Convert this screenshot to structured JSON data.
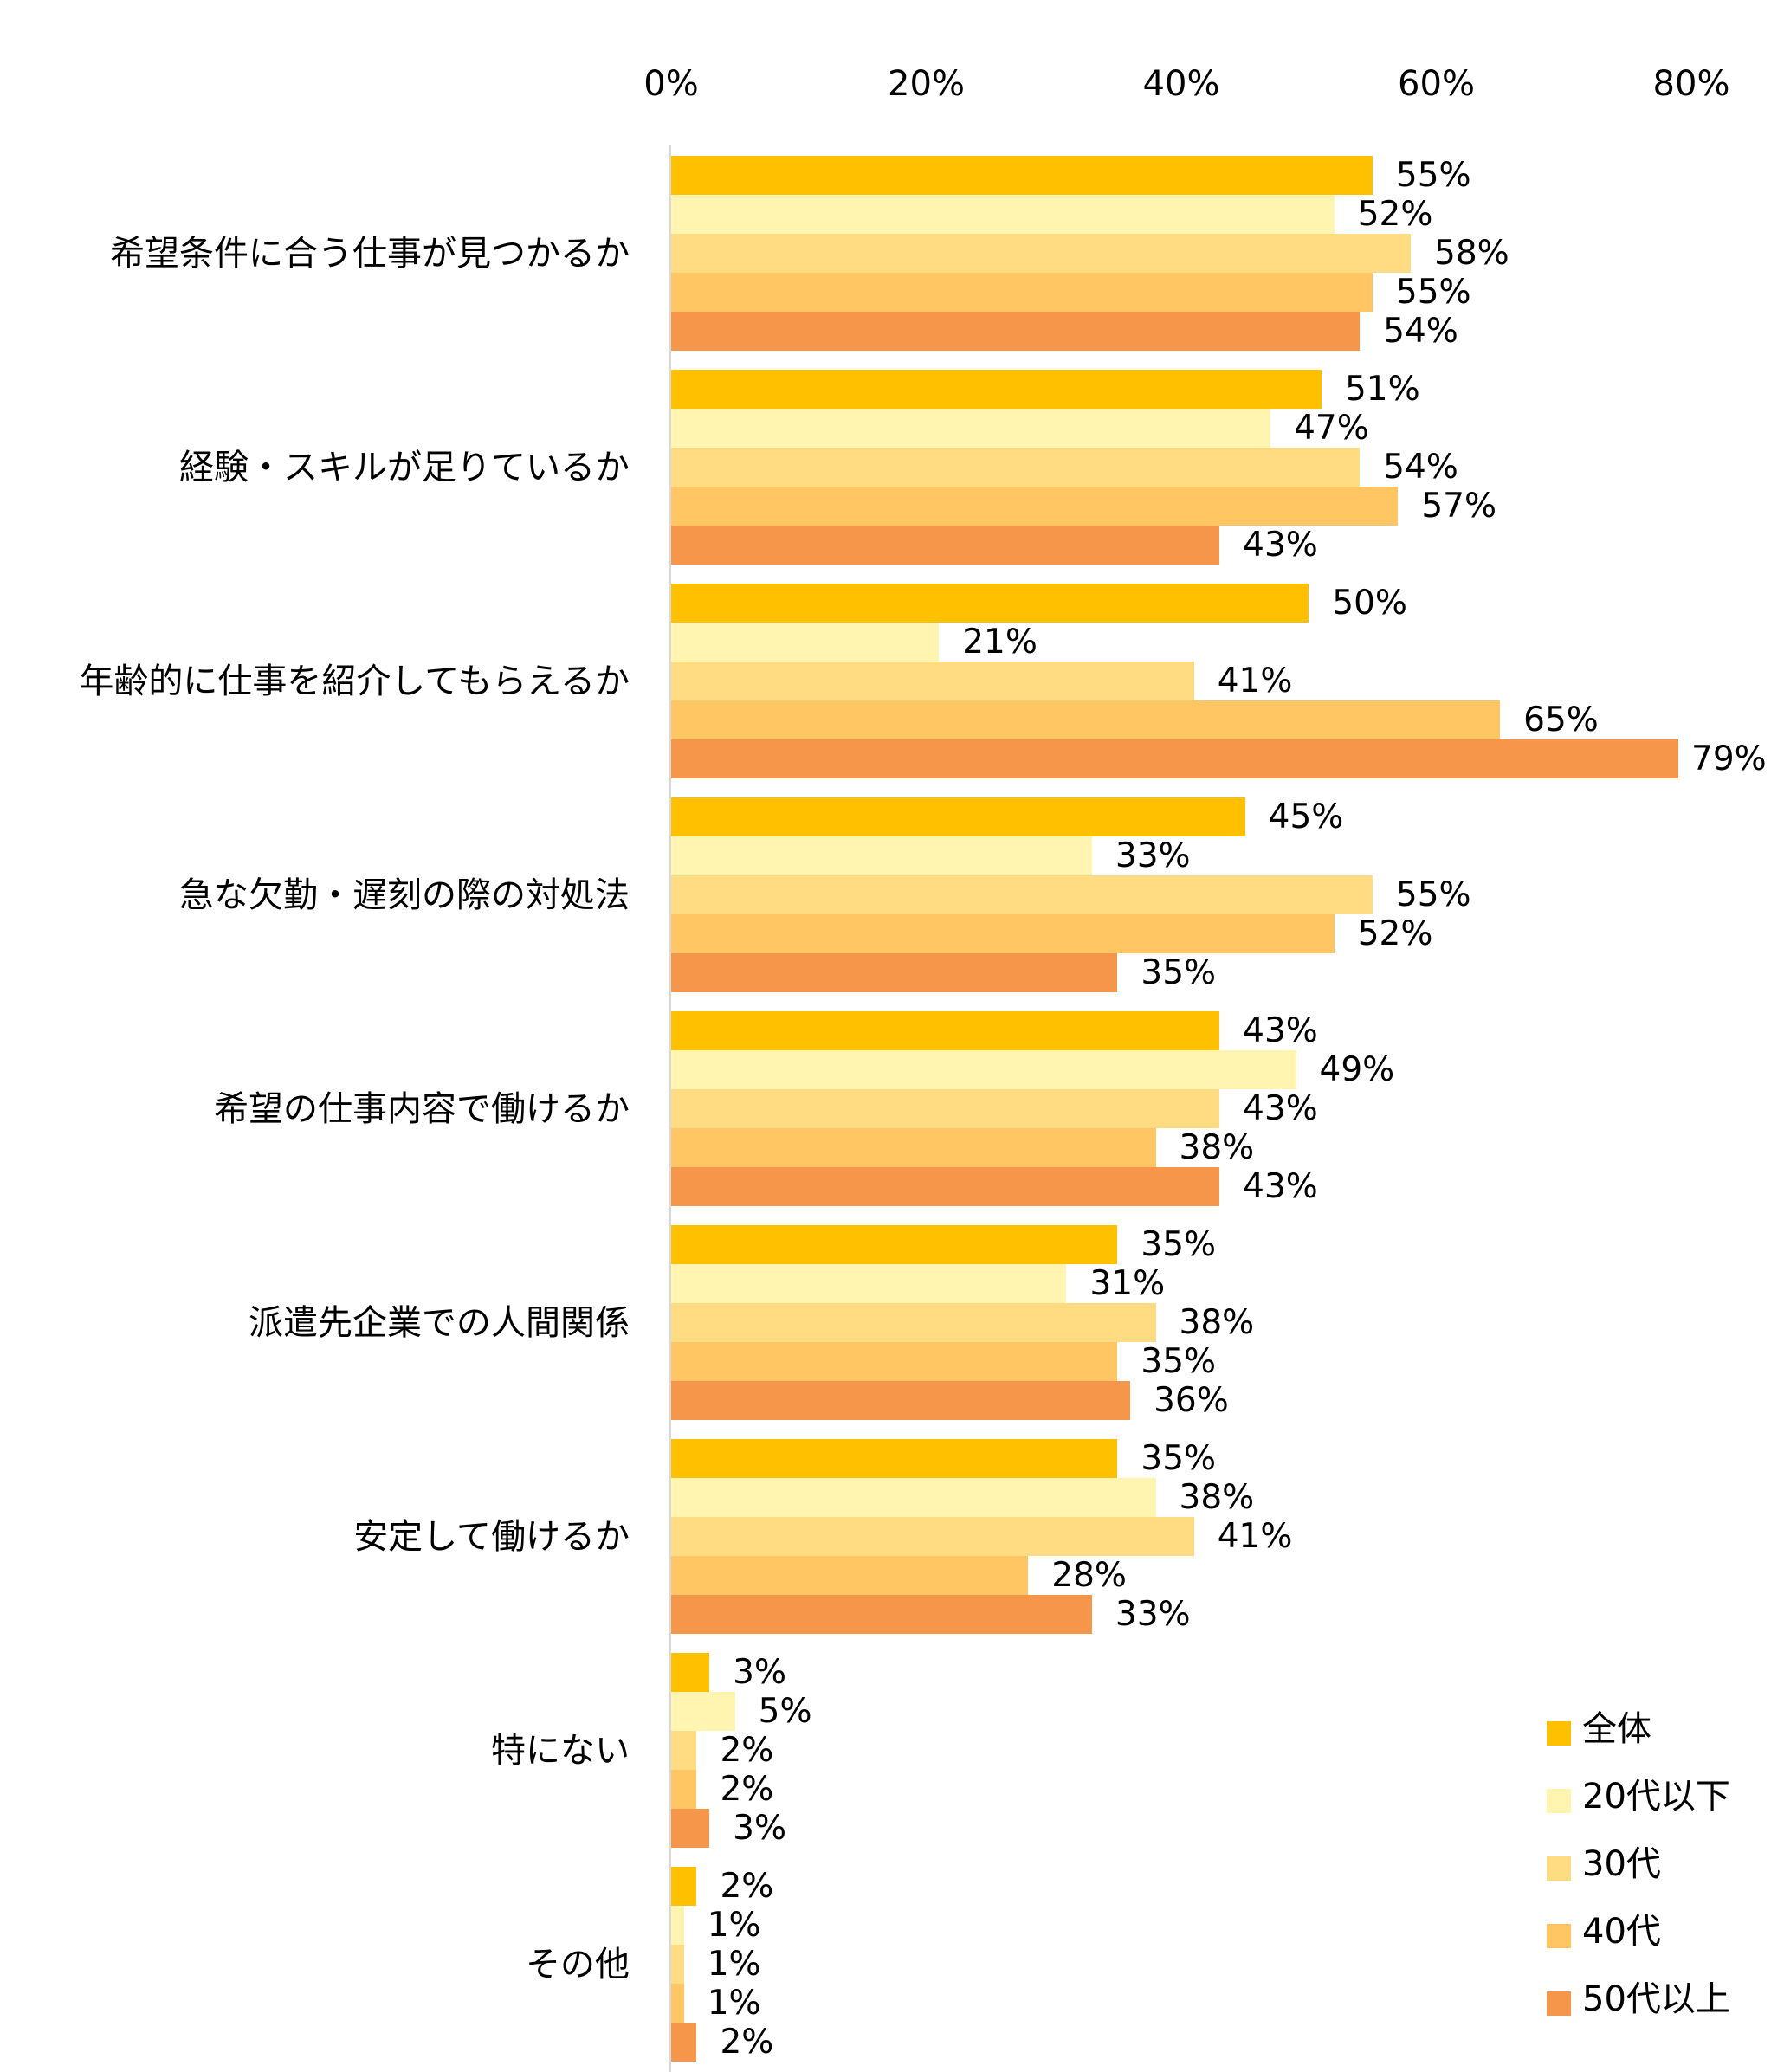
{
  "chart_data": {
    "type": "bar",
    "orientation": "horizontal",
    "title": "",
    "xlabel": "",
    "ylabel": "",
    "xlim": [
      0,
      80
    ],
    "tick_values": [
      0,
      20,
      40,
      60,
      80
    ],
    "x_ticks": [
      "0%",
      "20%",
      "40%",
      "60%",
      "80%"
    ],
    "grid": false,
    "legend_position": "bottom-right",
    "value_suffix": "%",
    "categories": [
      "希望条件に合う仕事が見つかるか",
      "経験・スキルが足りているか",
      "年齢的に仕事を紹介してもらえるか",
      "急な欠勤・遅刻の際の対処法",
      "希望の仕事内容で働けるか",
      "派遣先企業での人間関係",
      "安定して働けるか",
      "特にない",
      "その他"
    ],
    "series": [
      {
        "name": "全体",
        "color": "#FFC000",
        "values": [
          55,
          51,
          50,
          45,
          43,
          35,
          35,
          3,
          2
        ],
        "labels": [
          "55%",
          "51%",
          "50%",
          "45%",
          "43%",
          "35%",
          "35%",
          "3%",
          "2%"
        ]
      },
      {
        "name": "20代以下",
        "color": "#FFF4B0",
        "values": [
          52,
          47,
          21,
          33,
          49,
          31,
          38,
          5,
          1
        ],
        "labels": [
          "52%",
          "47%",
          "21%",
          "33%",
          "49%",
          "31%",
          "38%",
          "5%",
          "1%"
        ]
      },
      {
        "name": "30代",
        "color": "#FFDB82",
        "values": [
          58,
          54,
          41,
          55,
          43,
          38,
          41,
          2,
          1
        ],
        "labels": [
          "58%",
          "54%",
          "41%",
          "55%",
          "43%",
          "38%",
          "41%",
          "2%",
          "1%"
        ]
      },
      {
        "name": "40代",
        "color": "#FFC663",
        "values": [
          55,
          57,
          65,
          52,
          38,
          35,
          28,
          2,
          1
        ],
        "labels": [
          "55%",
          "57%",
          "65%",
          "52%",
          "38%",
          "35%",
          "28%",
          "2%",
          "1%"
        ]
      },
      {
        "name": "50代以上",
        "color": "#F6964A",
        "values": [
          54,
          43,
          79,
          35,
          43,
          36,
          33,
          3,
          2
        ],
        "labels": [
          "54%",
          "43%",
          "79%",
          "35%",
          "43%",
          "36%",
          "33%",
          "3%",
          "2%"
        ]
      }
    ],
    "axis_line_color": "#D9D9D9",
    "text_color": "#000000"
  }
}
